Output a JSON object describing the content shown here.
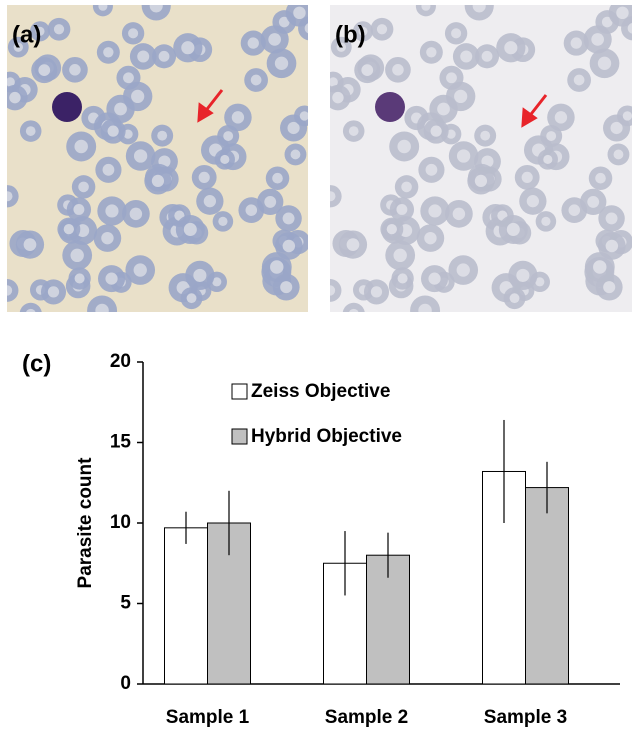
{
  "panels": {
    "a": "(a)",
    "b": "(b)"
  },
  "chart_data": {
    "type": "bar",
    "panel_label": "(c)",
    "y_label": "Parasite count",
    "categories": [
      "Sample 1",
      "Sample 2",
      "Sample 3"
    ],
    "series": [
      {
        "name": "Zeiss Objective",
        "color": "#ffffff",
        "values": [
          9.7,
          7.5,
          13.2
        ],
        "errors": [
          1.0,
          2.0,
          3.2
        ]
      },
      {
        "name": "Hybrid Objective",
        "color": "#c0c0c0",
        "values": [
          10.0,
          8.0,
          12.2
        ],
        "errors": [
          2.0,
          1.4,
          1.6
        ]
      }
    ],
    "ylim": [
      0,
      20
    ],
    "yticks": [
      0,
      5,
      10,
      15,
      20
    ],
    "grid": false,
    "legend": "top-left"
  }
}
